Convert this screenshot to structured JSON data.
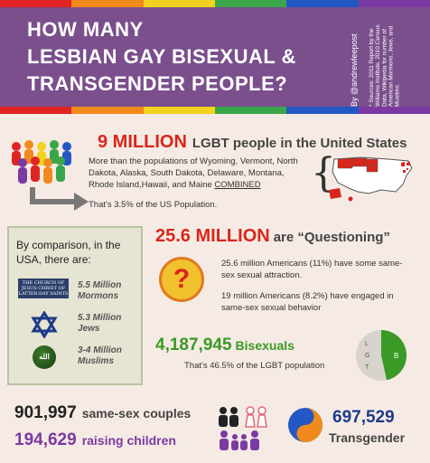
{
  "header": {
    "title_line1": "HOW MANY",
    "title_line2": "LESBIAN GAY BISEXUAL &",
    "title_line3": "TRANSGENDER PEOPLE?",
    "handle": "By @andrewleepost",
    "sources": "* Sources: 2011 Report by the Williams Institute, 2010 Census Data, Wikipedia for number of American Mormons, Jews, and Muslims."
  },
  "rainbow_colors": [
    "#e02424",
    "#f08a1c",
    "#f2d21f",
    "#3aa64a",
    "#2358c4",
    "#7b3aa1"
  ],
  "lgbt": {
    "number": "9 MILLION",
    "label": "LGBT people in the United States",
    "description": "More than the populations of Wyoming, Vermont, North Dakota, Alaska, South Dakota, Delaware, Montana, Rhode Island,Hawaii, and Maine ",
    "combined": "COMBINED",
    "share": "That's 3.5% of the US Population."
  },
  "comparison": {
    "heading": "By comparison, in the USA, there are:",
    "lds_logo_text": "THE CHURCH OF JESUS CHRIST OF LATTER-DAY SAINTS",
    "mormons": "5.5 Million Mormons",
    "jews": "5.3 Million Jews",
    "muslims": "3-4 Million Muslims",
    "muslim_icon_text": "الله"
  },
  "questioning": {
    "number": "25.6 MILLION",
    "label": "are “Questioning”",
    "icon": "?",
    "text1": "25.6 million Americans (11%) have some same-sex sexual attraction.",
    "text2": "19 million Americans (8.2%) have engaged in same-sex sexual behavior"
  },
  "bisexuals": {
    "number": "4,187,945",
    "label": "Bisexuals",
    "share": "That's 46.5% of the LGBT population",
    "pie_labels": [
      "B",
      "L",
      "G",
      "T"
    ],
    "pie_b_fraction": 0.465,
    "pie_colors": [
      "#3a9a26",
      "#d8d3cc"
    ]
  },
  "couples": {
    "number": "901,997",
    "label": "same-sex couples"
  },
  "children": {
    "number": "194,629",
    "label": "raising children"
  },
  "transgender": {
    "number": "697,529",
    "label": "Transgender"
  },
  "icons": [
    "people-group-icon",
    "arrow-icon",
    "us-map-icon",
    "star-of-david-icon",
    "question-mark-icon",
    "pie-chart-icon",
    "couple-icon",
    "family-icon",
    "yin-yang-icon"
  ]
}
